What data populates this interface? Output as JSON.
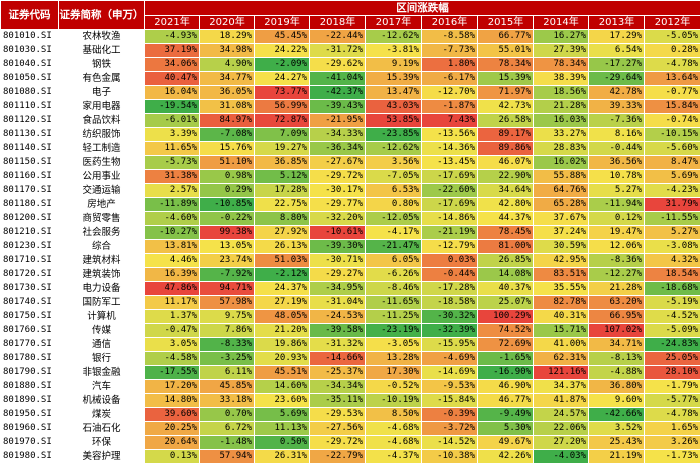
{
  "header": {
    "code_col": "证券代码",
    "name_col": "证券简称（申万）",
    "range_title": "区间涨跌幅"
  },
  "chart_data": {
    "type": "heatmap",
    "title": "区间涨跌幅",
    "color_scale": {
      "low": "#3fae49",
      "mid": "#f5e24a",
      "high": "#e8453c"
    },
    "years": [
      "2021年",
      "2020年",
      "2019年",
      "2018年",
      "2017年",
      "2016年",
      "2015年",
      "2014年",
      "2013年",
      "2012年"
    ],
    "rows": [
      {
        "code": "801010.SI",
        "name": "农林牧渔",
        "values": [
          -4.93,
          18.29,
          45.45,
          -22.44,
          -12.62,
          -8.58,
          66.77,
          16.27,
          17.29,
          -5.05
        ]
      },
      {
        "code": "801030.SI",
        "name": "基础化工",
        "values": [
          37.19,
          34.98,
          24.22,
          -31.72,
          -3.81,
          -7.73,
          55.01,
          27.39,
          6.54,
          0.28
        ]
      },
      {
        "code": "801040.SI",
        "name": "钢铁",
        "values": [
          34.06,
          4.9,
          -2.09,
          -29.62,
          9.19,
          1.8,
          78.34,
          78.34,
          -17.27,
          -4.78
        ]
      },
      {
        "code": "801050.SI",
        "name": "有色金属",
        "values": [
          40.47,
          34.77,
          24.27,
          -41.04,
          15.39,
          -6.17,
          15.39,
          38.39,
          -29.64,
          13.64
        ]
      },
      {
        "code": "801080.SI",
        "name": "电子",
        "values": [
          16.04,
          36.05,
          73.77,
          -42.37,
          13.47,
          -12.7,
          71.97,
          18.56,
          42.78,
          -0.77
        ]
      },
      {
        "code": "801110.SI",
        "name": "家用电器",
        "values": [
          -19.54,
          31.08,
          56.99,
          -39.43,
          43.03,
          -1.87,
          42.73,
          21.28,
          39.33,
          15.84
        ]
      },
      {
        "code": "801120.SI",
        "name": "食品饮料",
        "values": [
          -6.01,
          84.97,
          72.87,
          -21.95,
          53.85,
          7.43,
          26.58,
          16.03,
          -7.36,
          -0.74
        ]
      },
      {
        "code": "801130.SI",
        "name": "纺织服饰",
        "values": [
          3.39,
          -7.08,
          7.09,
          -34.33,
          -23.85,
          -13.56,
          89.17,
          33.27,
          8.16,
          -10.15
        ]
      },
      {
        "code": "801140.SI",
        "name": "轻工制造",
        "values": [
          11.65,
          15.76,
          19.27,
          -36.34,
          -12.62,
          -14.36,
          89.86,
          28.83,
          -0.44,
          -5.6
        ]
      },
      {
        "code": "801150.SI",
        "name": "医药生物",
        "values": [
          -5.73,
          51.1,
          36.85,
          -27.67,
          3.56,
          -13.45,
          46.07,
          16.02,
          36.56,
          8.47
        ]
      },
      {
        "code": "801160.SI",
        "name": "公用事业",
        "values": [
          31.38,
          0.98,
          5.12,
          -29.72,
          -7.05,
          -17.69,
          22.9,
          55.88,
          10.78,
          5.69
        ]
      },
      {
        "code": "801170.SI",
        "name": "交通运输",
        "values": [
          2.57,
          0.29,
          17.28,
          -30.17,
          6.53,
          -22.6,
          34.64,
          64.76,
          5.27,
          -4.23
        ]
      },
      {
        "code": "801180.SI",
        "name": "房地产",
        "values": [
          -11.89,
          -10.85,
          22.75,
          -29.77,
          0.8,
          -17.69,
          42.8,
          65.28,
          -11.94,
          31.79
        ]
      },
      {
        "code": "801200.SI",
        "name": "商贸零售",
        "values": [
          -4.6,
          -0.22,
          8.8,
          -32.2,
          -12.05,
          -14.86,
          44.37,
          37.67,
          0.12,
          -11.55
        ]
      },
      {
        "code": "801210.SI",
        "name": "社会服务",
        "values": [
          -10.27,
          99.38,
          27.92,
          -10.61,
          -4.17,
          -21.19,
          78.45,
          37.24,
          19.47,
          5.27
        ]
      },
      {
        "code": "801230.SI",
        "name": "综合",
        "values": [
          13.81,
          13.05,
          26.13,
          -39.3,
          -21.47,
          -12.79,
          81.0,
          30.59,
          12.06,
          -3.08
        ]
      },
      {
        "code": "801710.SI",
        "name": "建筑材料",
        "values": [
          4.46,
          23.74,
          51.03,
          -30.71,
          6.05,
          0.03,
          26.85,
          42.95,
          -8.36,
          4.32
        ]
      },
      {
        "code": "801720.SI",
        "name": "建筑装饰",
        "values": [
          16.39,
          -7.92,
          -2.12,
          -29.27,
          -6.26,
          -0.44,
          14.08,
          83.51,
          -12.27,
          18.54
        ]
      },
      {
        "code": "801730.SI",
        "name": "电力设备",
        "values": [
          47.86,
          94.71,
          24.37,
          -34.95,
          -8.46,
          -17.28,
          40.37,
          35.55,
          21.28,
          -18.68
        ]
      },
      {
        "code": "801740.SI",
        "name": "国防军工",
        "values": [
          11.17,
          57.98,
          27.19,
          -31.04,
          -11.65,
          -18.58,
          25.07,
          82.78,
          63.2,
          -5.19
        ]
      },
      {
        "code": "801750.SI",
        "name": "计算机",
        "values": [
          1.37,
          9.75,
          48.05,
          -24.53,
          -11.25,
          -30.32,
          100.29,
          40.31,
          66.95,
          -4.52
        ]
      },
      {
        "code": "801760.SI",
        "name": "传媒",
        "values": [
          -0.47,
          7.86,
          21.2,
          -39.58,
          -23.19,
          -32.39,
          74.52,
          15.71,
          107.02,
          -5.09
        ]
      },
      {
        "code": "801770.SI",
        "name": "通信",
        "values": [
          3.05,
          -8.33,
          19.86,
          -31.32,
          -3.05,
          -15.95,
          72.69,
          41.0,
          34.71,
          -24.83
        ]
      },
      {
        "code": "801780.SI",
        "name": "银行",
        "values": [
          -4.58,
          -3.25,
          20.93,
          -14.66,
          13.28,
          -4.69,
          -1.65,
          62.31,
          -8.13,
          25.05
        ]
      },
      {
        "code": "801790.SI",
        "name": "非银金融",
        "values": [
          -17.55,
          6.11,
          45.51,
          -25.37,
          17.3,
          -14.69,
          -16.9,
          121.16,
          -4.88,
          28.1
        ]
      },
      {
        "code": "801880.SI",
        "name": "汽车",
        "values": [
          17.2,
          45.85,
          14.6,
          -34.34,
          -0.52,
          -9.53,
          46.9,
          34.37,
          36.8,
          -1.79
        ]
      },
      {
        "code": "801890.SI",
        "name": "机械设备",
        "values": [
          14.8,
          33.18,
          23.6,
          -35.11,
          -10.19,
          -15.84,
          46.77,
          41.87,
          9.6,
          -5.77
        ]
      },
      {
        "code": "801950.SI",
        "name": "煤炭",
        "values": [
          39.6,
          0.7,
          5.69,
          -29.53,
          8.5,
          -0.39,
          -9.49,
          24.57,
          -42.66,
          -4.78
        ]
      },
      {
        "code": "801960.SI",
        "name": "石油石化",
        "values": [
          20.25,
          6.72,
          11.13,
          -27.56,
          -4.68,
          -3.72,
          5.3,
          22.06,
          3.52,
          1.65
        ]
      },
      {
        "code": "801970.SI",
        "name": "环保",
        "values": [
          20.64,
          -1.48,
          0.5,
          -29.72,
          -4.68,
          -14.52,
          49.67,
          27.2,
          25.43,
          3.26
        ]
      },
      {
        "code": "801980.SI",
        "name": "美容护理",
        "values": [
          0.13,
          57.94,
          26.31,
          -22.79,
          -4.37,
          -10.38,
          42.26,
          -4.03,
          21.19,
          -1.73
        ]
      }
    ]
  }
}
